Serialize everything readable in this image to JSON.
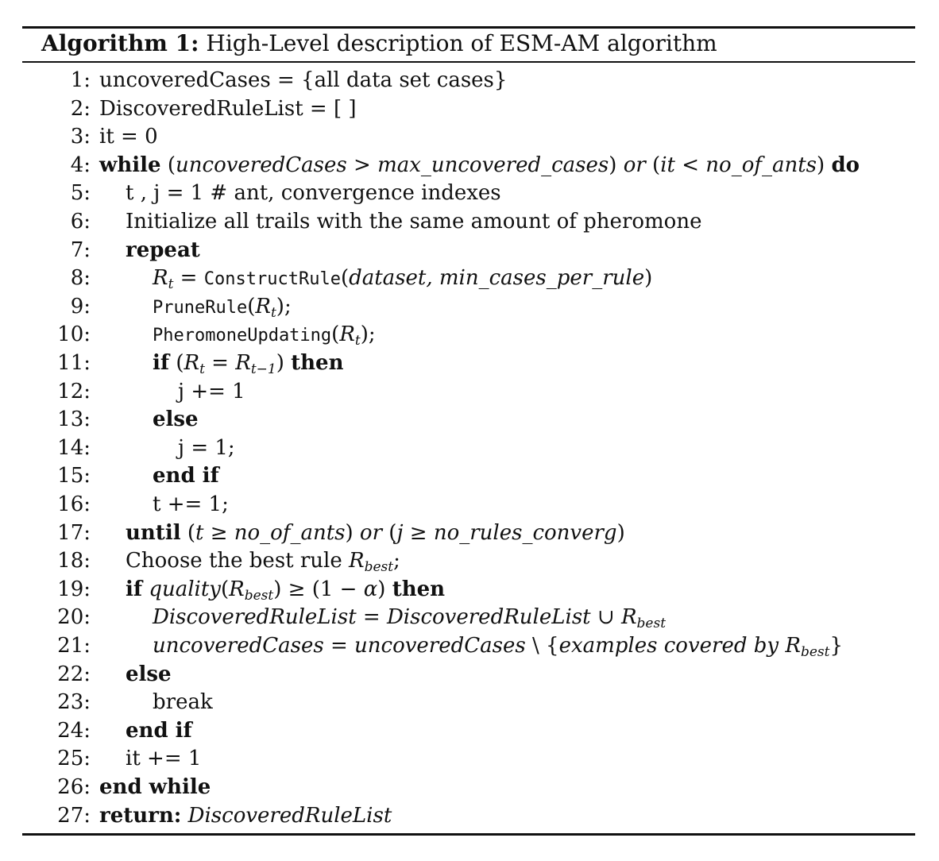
{
  "caption": {
    "label": "Algorithm 1:",
    "text": "High-Level description of ESM-AM algorithm"
  },
  "lines": [
    {
      "num": "1:",
      "indent": 0,
      "segments": [
        {
          "t": "uncoveredCases = {all data set cases}"
        }
      ]
    },
    {
      "num": "2:",
      "indent": 0,
      "segments": [
        {
          "t": "DiscoveredRuleList = [ ]"
        }
      ]
    },
    {
      "num": "3:",
      "indent": 0,
      "segments": [
        {
          "t": "it = 0"
        }
      ]
    },
    {
      "num": "4:",
      "indent": 0,
      "segments": [
        {
          "t": "while",
          "s": "kw"
        },
        {
          "t": " ("
        },
        {
          "t": "uncoveredCases",
          "s": "it"
        },
        {
          "t": " > "
        },
        {
          "t": "max_uncovered_cases",
          "s": "it"
        },
        {
          "t": ") "
        },
        {
          "t": "or",
          "s": "it"
        },
        {
          "t": " ("
        },
        {
          "t": "it",
          "s": "it"
        },
        {
          "t": " < "
        },
        {
          "t": "no_of_ants",
          "s": "it"
        },
        {
          "t": ") "
        },
        {
          "t": "do",
          "s": "kw"
        }
      ]
    },
    {
      "num": "5:",
      "indent": 1,
      "segments": [
        {
          "t": "t , j = 1 # ant, convergence indexes"
        }
      ]
    },
    {
      "num": "6:",
      "indent": 1,
      "segments": [
        {
          "t": "Initialize all trails with the same amount of pheromone"
        }
      ]
    },
    {
      "num": "7:",
      "indent": 1,
      "segments": [
        {
          "t": "repeat",
          "s": "kw"
        }
      ]
    },
    {
      "num": "8:",
      "indent": 2,
      "segments": [
        {
          "t": "R",
          "s": "it"
        },
        {
          "t": "t",
          "s": "sub"
        },
        {
          "t": " = "
        },
        {
          "t": "ConstructRule",
          "s": "tt"
        },
        {
          "t": "("
        },
        {
          "t": "dataset, min_cases_per_rule",
          "s": "it"
        },
        {
          "t": ")"
        }
      ]
    },
    {
      "num": "9:",
      "indent": 2,
      "segments": [
        {
          "t": "PruneRule",
          "s": "tt"
        },
        {
          "t": "("
        },
        {
          "t": "R",
          "s": "it"
        },
        {
          "t": "t",
          "s": "sub"
        },
        {
          "t": ");"
        }
      ]
    },
    {
      "num": "10:",
      "indent": 2,
      "segments": [
        {
          "t": "PheromoneUpdating",
          "s": "tt"
        },
        {
          "t": "("
        },
        {
          "t": "R",
          "s": "it"
        },
        {
          "t": "t",
          "s": "sub"
        },
        {
          "t": ");"
        }
      ]
    },
    {
      "num": "11:",
      "indent": 2,
      "segments": [
        {
          "t": "if",
          "s": "kw"
        },
        {
          "t": " ("
        },
        {
          "t": "R",
          "s": "it"
        },
        {
          "t": "t",
          "s": "sub"
        },
        {
          "t": " = "
        },
        {
          "t": "R",
          "s": "it"
        },
        {
          "t": "t−1",
          "s": "sub"
        },
        {
          "t": ") "
        },
        {
          "t": "then",
          "s": "kw"
        }
      ]
    },
    {
      "num": "12:",
      "indent": 3,
      "segments": [
        {
          "t": "j += 1"
        }
      ]
    },
    {
      "num": "13:",
      "indent": 2,
      "segments": [
        {
          "t": "else",
          "s": "kw"
        }
      ]
    },
    {
      "num": "14:",
      "indent": 3,
      "segments": [
        {
          "t": "j = 1;"
        }
      ]
    },
    {
      "num": "15:",
      "indent": 2,
      "segments": [
        {
          "t": "end if",
          "s": "kw"
        }
      ]
    },
    {
      "num": "16:",
      "indent": 2,
      "segments": [
        {
          "t": "t += 1;"
        }
      ]
    },
    {
      "num": "17:",
      "indent": 1,
      "segments": [
        {
          "t": "until",
          "s": "kw"
        },
        {
          "t": " ("
        },
        {
          "t": "t",
          "s": "it"
        },
        {
          "t": " ≥ "
        },
        {
          "t": "no_of_ants",
          "s": "it"
        },
        {
          "t": ") "
        },
        {
          "t": "or",
          "s": "it"
        },
        {
          "t": " ("
        },
        {
          "t": "j",
          "s": "it"
        },
        {
          "t": " ≥ "
        },
        {
          "t": "no_rules_converg",
          "s": "it"
        },
        {
          "t": ")"
        }
      ]
    },
    {
      "num": "18:",
      "indent": 1,
      "segments": [
        {
          "t": "Choose the best rule "
        },
        {
          "t": "R",
          "s": "it"
        },
        {
          "t": "best",
          "s": "sub"
        },
        {
          "t": ";"
        }
      ]
    },
    {
      "num": "19:",
      "indent": 1,
      "segments": [
        {
          "t": "if",
          "s": "kw"
        },
        {
          "t": " "
        },
        {
          "t": "quality",
          "s": "it"
        },
        {
          "t": "("
        },
        {
          "t": "R",
          "s": "it"
        },
        {
          "t": "best",
          "s": "sub"
        },
        {
          "t": ") ≥ (1 − "
        },
        {
          "t": "α",
          "s": "it"
        },
        {
          "t": ") "
        },
        {
          "t": "then",
          "s": "kw"
        }
      ]
    },
    {
      "num": "20:",
      "indent": 2,
      "segments": [
        {
          "t": "DiscoveredRuleList = DiscoveredRuleList",
          "s": "it"
        },
        {
          "t": " ∪  "
        },
        {
          "t": "R",
          "s": "it"
        },
        {
          "t": "best",
          "s": "sub"
        }
      ]
    },
    {
      "num": "21:",
      "indent": 2,
      "segments": [
        {
          "t": "uncoveredCases = uncoveredCases",
          "s": "it"
        },
        {
          "t": " \\ {"
        },
        {
          "t": "examples covered by R",
          "s": "it"
        },
        {
          "t": "best",
          "s": "sub"
        },
        {
          "t": "}"
        }
      ]
    },
    {
      "num": "22:",
      "indent": 1,
      "segments": [
        {
          "t": "else",
          "s": "kw"
        }
      ]
    },
    {
      "num": "23:",
      "indent": 2,
      "segments": [
        {
          "t": "break"
        }
      ]
    },
    {
      "num": "24:",
      "indent": 1,
      "segments": [
        {
          "t": "end if",
          "s": "kw"
        }
      ]
    },
    {
      "num": "25:",
      "indent": 1,
      "segments": [
        {
          "t": "it += 1"
        }
      ]
    },
    {
      "num": "26:",
      "indent": 0,
      "segments": [
        {
          "t": "end while",
          "s": "kw"
        }
      ]
    },
    {
      "num": "27:",
      "indent": 0,
      "segments": [
        {
          "t": "return:",
          "s": "kw"
        },
        {
          "t": " "
        },
        {
          "t": "DiscoveredRuleList",
          "s": "it"
        }
      ]
    }
  ]
}
